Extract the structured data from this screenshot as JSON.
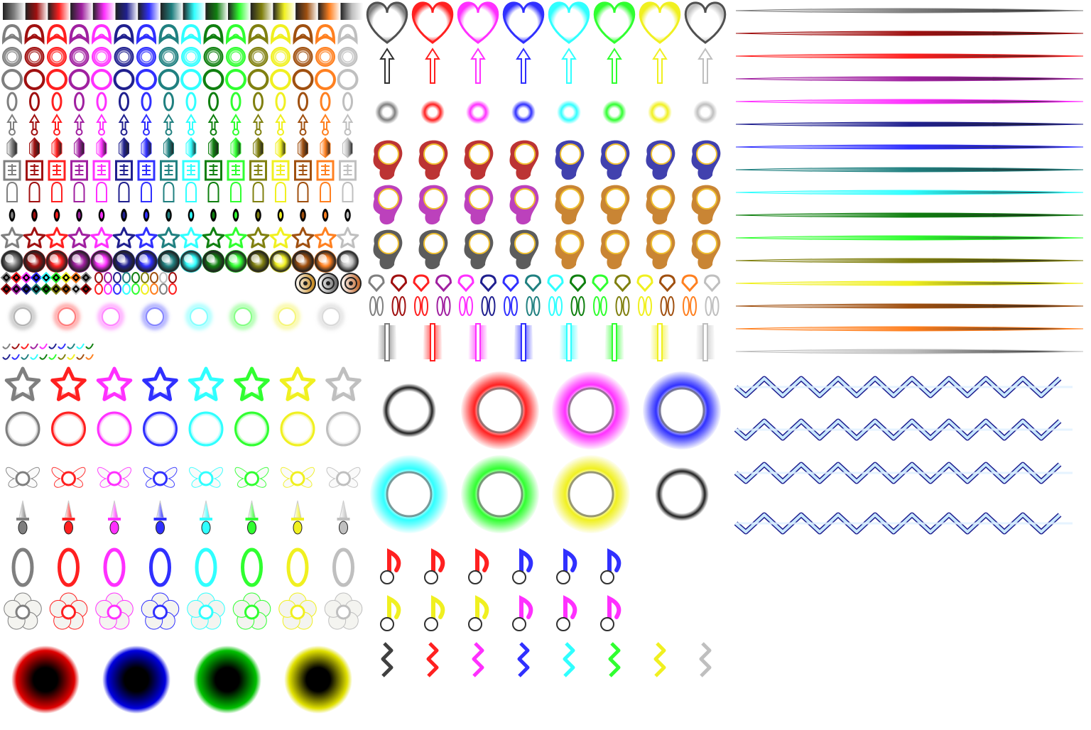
{
  "sheet": {
    "kind": "bullet sprite sheet",
    "background": "#ffffff"
  },
  "palette16": [
    "#7f7f7f",
    "#a01010",
    "#ff2020",
    "#a020a0",
    "#ff30ff",
    "#20208f",
    "#3030ff",
    "#208080",
    "#30ffff",
    "#108010",
    "#30ff30",
    "#808010",
    "#f0f020",
    "#a05010",
    "#ff8020",
    "#bfbfbf"
  ],
  "palette8": [
    "#7f7f7f",
    "#ff2020",
    "#ff30ff",
    "#3030ff",
    "#30ffff",
    "#30ff30",
    "#f0f020",
    "#bfbfbf"
  ],
  "small_rows": [
    {
      "name": "gradient-strip",
      "icon": "gradient-bar-icon"
    },
    {
      "name": "arrowhead-bullet-row",
      "icon": "arrowhead-bullet-icon"
    },
    {
      "name": "ring-bullet-row-a",
      "icon": "ring-bullet-icon"
    },
    {
      "name": "ring-bullet-row-b",
      "icon": "ring-bullet-icon"
    },
    {
      "name": "rice-bullet-row",
      "icon": "rice-bullet-icon"
    },
    {
      "name": "arrow-bullet-row",
      "icon": "arrow-bullet-icon"
    },
    {
      "name": "crystal-bullet-row",
      "icon": "crystal-bullet-icon"
    },
    {
      "name": "talisman-bullet-row",
      "icon": "talisman-bullet-icon"
    },
    {
      "name": "capsule-bullet-row",
      "icon": "capsule-bullet-icon"
    },
    {
      "name": "seed-bullet-row",
      "icon": "seed-bullet-icon"
    },
    {
      "name": "star-bullet-row",
      "icon": "star-bullet-icon"
    },
    {
      "name": "orb-bullet-row",
      "icon": "orb-bullet-icon"
    }
  ],
  "mid_left_rows": [
    {
      "name": "big-star-row",
      "icon": "star-bullet-icon"
    },
    {
      "name": "big-ring-row",
      "icon": "ring-bullet-icon"
    },
    {
      "name": "butterfly-row",
      "icon": "butterfly-bullet-icon"
    },
    {
      "name": "knife-row",
      "icon": "knife-bullet-icon"
    },
    {
      "name": "oval-row",
      "icon": "oval-bullet-icon"
    },
    {
      "name": "flower-row",
      "icon": "flower-bullet-icon"
    }
  ],
  "dark_orbs": [
    "#e00000",
    "#0000e0",
    "#00c000",
    "#e0e000"
  ],
  "glow_rings": [
    "#7f7f7f",
    "#ff2020",
    "#ff30ff",
    "#3030ff",
    "#30ffff",
    "#30ff30",
    "#f0f020",
    "#7f7f7f"
  ],
  "flame_colors": [
    "#b01010",
    "#b01010",
    "#b01010",
    "#b01010",
    "#2020a0",
    "#2020a0",
    "#2020a0",
    "#2020a0",
    "#b020b0",
    "#b020b0",
    "#b020b0",
    "#b020b0",
    "#c07010",
    "#c07010",
    "#c07010",
    "#c07010",
    "#404040",
    "#404040",
    "#404040",
    "#404040",
    "#c07010",
    "#c07010",
    "#c07010",
    "#c07010"
  ],
  "note_colors": [
    "#ff2020",
    "#ff2020",
    "#ff2020",
    "#3030ff",
    "#3030ff",
    "#3030ff",
    "#f0f020",
    "#f0f020",
    "#f0f020",
    "#ff30ff",
    "#ff30ff",
    "#ff30ff"
  ],
  "lasers": [
    "#7f7f7f",
    "#a01010",
    "#ff2020",
    "#a020a0",
    "#ff30ff",
    "#20208f",
    "#3030ff",
    "#208080",
    "#30ffff",
    "#108010",
    "#30ff30",
    "#808010",
    "#f0f020",
    "#a05010",
    "#ff8020",
    "#bfbfbf"
  ]
}
